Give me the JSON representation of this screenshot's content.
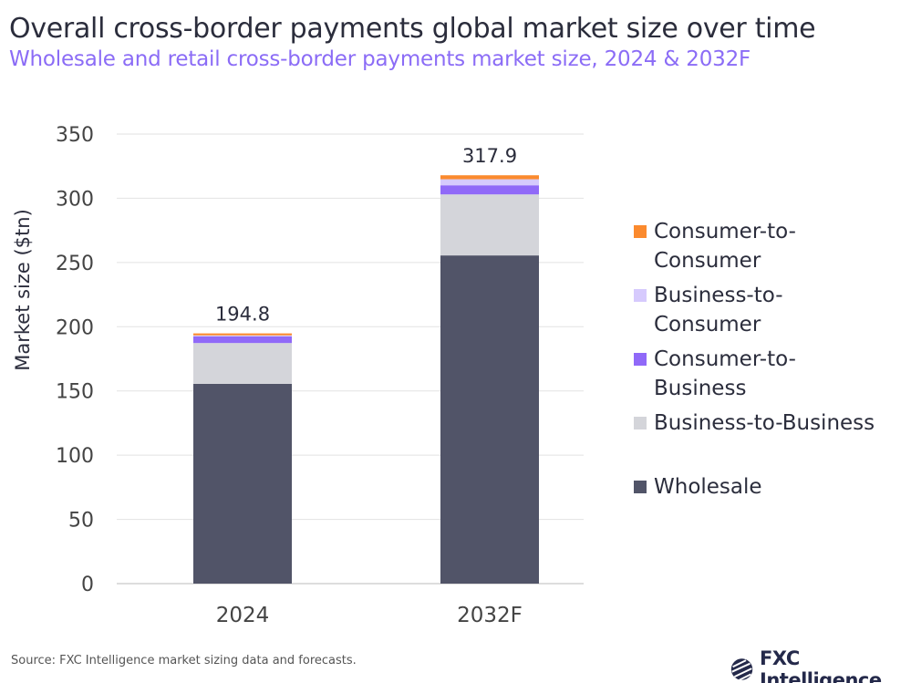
{
  "title": "Overall cross-border payments global market size over time",
  "subtitle": "Wholesale and retail cross-border payments market size, 2024 & 2032F",
  "source": "Source: FXC Intelligence market sizing data and forecasts.",
  "logo_text": "FXC Intelligence",
  "chart_data": {
    "type": "stacked-bar",
    "categories": [
      "2024",
      "2032F"
    ],
    "ylabel": "Market size ($tn)",
    "ylim": [
      0,
      350
    ],
    "yticks": [
      0,
      50,
      100,
      150,
      200,
      250,
      300,
      350
    ],
    "grid": true,
    "legend_position": "right",
    "totals": [
      "194.8",
      "317.9"
    ],
    "series": [
      {
        "name": "Wholesale",
        "color": "#515468",
        "values": [
          155.5,
          255.5
        ]
      },
      {
        "name": "Business-to-Business",
        "color": "#d4d5da",
        "values": [
          31.8,
          47.5
        ]
      },
      {
        "name": "Consumer-to-Business",
        "color": "#9069f8",
        "values": [
          5.2,
          7.1
        ]
      },
      {
        "name": "Business-to-Consumer",
        "color": "#d6cafd",
        "values": [
          0.8,
          4.7
        ]
      },
      {
        "name": "Consumer-to-Consumer",
        "color": "#fb8a2e",
        "values": [
          1.5,
          3.1
        ]
      }
    ],
    "legend": [
      {
        "line1": "Consumer-to-",
        "line2": "Consumer",
        "color": "#fb8a2e"
      },
      {
        "line1": "Business-to-",
        "line2": "Consumer",
        "color": "#d6cafd"
      },
      {
        "line1": "Consumer-to-",
        "line2": "Business",
        "color": "#9069f8"
      },
      {
        "line1": "Business-to-Business",
        "line2": "",
        "color": "#d4d5da"
      },
      {
        "line1": "Wholesale",
        "line2": "",
        "color": "#515468"
      }
    ]
  }
}
